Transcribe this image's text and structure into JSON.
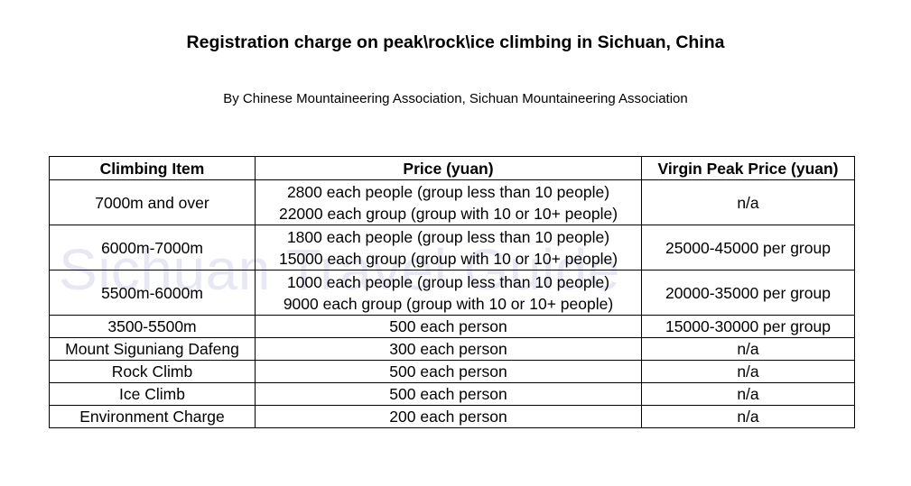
{
  "title": "Registration charge on peak\\rock\\ice climbing in Sichuan, China",
  "subtitle": "By Chinese Mountaineering Association, Sichuan Mountaineering Association",
  "watermark": "Sichuan Travel Guide",
  "table": {
    "headers": [
      "Climbing Item",
      "Price (yuan)",
      "Virgin Peak Price (yuan)"
    ],
    "rows": [
      {
        "item": "7000m and over",
        "price": [
          "2800 each people (group less than 10 people)",
          "22000 each group (group with 10 or 10+ people)"
        ],
        "virgin": "n/a"
      },
      {
        "item": "6000m-7000m",
        "price": [
          "1800 each people (group less than 10 people)",
          "15000 each group (group with 10 or 10+ people)"
        ],
        "virgin": "25000-45000 per group"
      },
      {
        "item": "5500m-6000m",
        "price": [
          "1000 each people (group less than 10 people)",
          "9000 each group (group with 10 or 10+ people)"
        ],
        "virgin": "20000-35000 per group"
      },
      {
        "item": "3500-5500m",
        "price": [
          "500 each person"
        ],
        "virgin": "15000-30000 per group"
      },
      {
        "item": "Mount Siguniang Dafeng",
        "price": [
          "300 each person"
        ],
        "virgin": "n/a"
      },
      {
        "item": "Rock Climb",
        "price": [
          "500 each person"
        ],
        "virgin": "n/a"
      },
      {
        "item": "Ice Climb",
        "price": [
          "500 each person"
        ],
        "virgin": "n/a"
      },
      {
        "item": "Environment Charge",
        "price": [
          "200 each person"
        ],
        "virgin": "n/a"
      }
    ]
  }
}
